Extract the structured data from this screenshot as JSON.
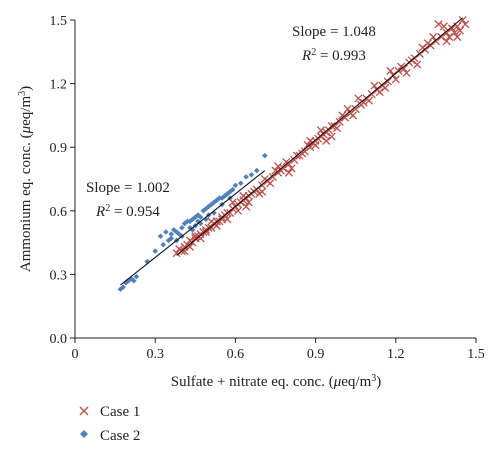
{
  "chart_data": {
    "type": "scatter",
    "xlabel_pre": "Sulfate + nitrate eq. conc. (",
    "xlabel_unit": "μ",
    "xlabel_post": "eq/m",
    "xlabel_sup": "3",
    "xlabel_close": ")",
    "ylabel_pre": "Ammonium eq. conc. (",
    "ylabel_unit": "μ",
    "ylabel_post": "eq/m",
    "ylabel_sup": "3",
    "ylabel_close": ")",
    "xlim": [
      0.0,
      1.5
    ],
    "ylim": [
      0.0,
      1.5
    ],
    "xticks": [
      "0",
      "0.3",
      "0.6",
      "0.9",
      "1.2",
      "1.5"
    ],
    "yticks": [
      "0.0",
      "0.3",
      "0.6",
      "0.9",
      "1.2",
      "1.5"
    ],
    "grid": false,
    "legend_position": "bottom-left",
    "annotations": {
      "case1_slope": "Slope = 1.048",
      "case1_r2_label": "R",
      "case1_r2_sup": "2",
      "case1_r2_value": " = 0.993",
      "case2_slope": "Slope = 1.002",
      "case2_r2_label": "R",
      "case2_r2_sup": "2",
      "case2_r2_value": " = 0.954"
    },
    "series": [
      {
        "name": "Case 1",
        "marker": "x",
        "color": "#c0504d",
        "fit": {
          "x": [
            0.38,
            1.45
          ],
          "y": [
            0.39,
            1.51
          ]
        },
        "points": [
          [
            0.38,
            0.4
          ],
          [
            0.39,
            0.42
          ],
          [
            0.4,
            0.41
          ],
          [
            0.41,
            0.43
          ],
          [
            0.42,
            0.44
          ],
          [
            0.43,
            0.46
          ],
          [
            0.44,
            0.45
          ],
          [
            0.45,
            0.47
          ],
          [
            0.46,
            0.48
          ],
          [
            0.47,
            0.49
          ],
          [
            0.48,
            0.5
          ],
          [
            0.49,
            0.51
          ],
          [
            0.5,
            0.52
          ],
          [
            0.51,
            0.52
          ],
          [
            0.52,
            0.54
          ],
          [
            0.53,
            0.55
          ],
          [
            0.54,
            0.55
          ],
          [
            0.55,
            0.57
          ],
          [
            0.56,
            0.58
          ],
          [
            0.57,
            0.59
          ],
          [
            0.58,
            0.59
          ],
          [
            0.59,
            0.61
          ],
          [
            0.6,
            0.62
          ],
          [
            0.61,
            0.63
          ],
          [
            0.62,
            0.64
          ],
          [
            0.63,
            0.65
          ],
          [
            0.64,
            0.66
          ],
          [
            0.65,
            0.67
          ],
          [
            0.66,
            0.68
          ],
          [
            0.67,
            0.69
          ],
          [
            0.68,
            0.7
          ],
          [
            0.7,
            0.72
          ],
          [
            0.72,
            0.74
          ],
          [
            0.74,
            0.76
          ],
          [
            0.76,
            0.78
          ],
          [
            0.78,
            0.8
          ],
          [
            0.8,
            0.82
          ],
          [
            0.82,
            0.84
          ],
          [
            0.84,
            0.86
          ],
          [
            0.86,
            0.88
          ],
          [
            0.88,
            0.9
          ],
          [
            0.9,
            0.93
          ],
          [
            0.91,
            0.94
          ],
          [
            0.92,
            0.95
          ],
          [
            0.93,
            0.96
          ],
          [
            0.94,
            0.97
          ],
          [
            0.95,
            0.98
          ],
          [
            0.97,
            1.0
          ],
          [
            0.99,
            1.02
          ],
          [
            1.01,
            1.04
          ],
          [
            1.03,
            1.06
          ],
          [
            1.05,
            1.08
          ],
          [
            1.07,
            1.1
          ],
          [
            1.09,
            1.13
          ],
          [
            1.11,
            1.15
          ],
          [
            1.13,
            1.17
          ],
          [
            1.15,
            1.19
          ],
          [
            1.17,
            1.21
          ],
          [
            1.19,
            1.24
          ],
          [
            1.21,
            1.26
          ],
          [
            1.23,
            1.27
          ],
          [
            1.25,
            1.3
          ],
          [
            1.27,
            1.32
          ],
          [
            1.29,
            1.34
          ],
          [
            1.31,
            1.36
          ],
          [
            1.33,
            1.38
          ],
          [
            1.35,
            1.4
          ],
          [
            1.37,
            1.42
          ],
          [
            1.39,
            1.44
          ],
          [
            1.41,
            1.46
          ],
          [
            1.43,
            1.47
          ],
          [
            1.44,
            1.45
          ],
          [
            1.45,
            1.5
          ],
          [
            1.46,
            1.48
          ],
          [
            1.42,
            1.44
          ],
          [
            1.38,
            1.47
          ],
          [
            1.34,
            1.42
          ],
          [
            1.3,
            1.37
          ],
          [
            1.26,
            1.31
          ],
          [
            1.22,
            1.28
          ],
          [
            1.18,
            1.26
          ],
          [
            1.14,
            1.16
          ],
          [
            1.1,
            1.12
          ],
          [
            1.06,
            1.13
          ],
          [
            1.02,
            1.08
          ],
          [
            0.98,
            0.99
          ],
          [
            0.96,
            0.95
          ],
          [
            0.92,
            0.98
          ],
          [
            0.89,
            0.92
          ],
          [
            0.87,
            0.91
          ],
          [
            0.85,
            0.87
          ],
          [
            0.83,
            0.86
          ],
          [
            0.81,
            0.8
          ],
          [
            0.79,
            0.83
          ],
          [
            0.77,
            0.79
          ],
          [
            0.75,
            0.79
          ],
          [
            0.73,
            0.73
          ],
          [
            0.71,
            0.75
          ],
          [
            0.69,
            0.68
          ],
          [
            0.65,
            0.64
          ],
          [
            0.63,
            0.67
          ],
          [
            0.61,
            0.6
          ],
          [
            0.59,
            0.64
          ],
          [
            0.57,
            0.56
          ],
          [
            0.55,
            0.56
          ],
          [
            0.53,
            0.53
          ],
          [
            0.51,
            0.55
          ],
          [
            0.49,
            0.5
          ],
          [
            0.47,
            0.47
          ],
          [
            0.45,
            0.48
          ],
          [
            0.43,
            0.43
          ],
          [
            0.41,
            0.41
          ],
          [
            1.36,
            1.48
          ],
          [
            1.4,
            1.42
          ],
          [
            1.28,
            1.29
          ],
          [
            1.32,
            1.39
          ],
          [
            1.16,
            1.18
          ],
          [
            1.12,
            1.19
          ],
          [
            1.04,
            1.05
          ],
          [
            1.0,
            1.05
          ],
          [
            0.94,
            0.93
          ],
          [
            0.88,
            0.93
          ],
          [
            0.8,
            0.78
          ],
          [
            0.76,
            0.81
          ],
          [
            0.7,
            0.69
          ],
          [
            0.64,
            0.62
          ],
          [
            1.43,
            1.42
          ],
          [
            1.39,
            1.4
          ],
          [
            1.24,
            1.25
          ],
          [
            1.2,
            1.22
          ],
          [
            1.08,
            1.11
          ],
          [
            0.96,
            1.0
          ],
          [
            0.9,
            0.91
          ]
        ]
      },
      {
        "name": "Case 2",
        "marker": "diamond",
        "color": "#4f81bd",
        "fit": {
          "x": [
            0.17,
            0.71
          ],
          "y": [
            0.25,
            0.79
          ]
        },
        "points": [
          [
            0.17,
            0.23
          ],
          [
            0.18,
            0.24
          ],
          [
            0.19,
            0.26
          ],
          [
            0.2,
            0.27
          ],
          [
            0.21,
            0.28
          ],
          [
            0.22,
            0.27
          ],
          [
            0.23,
            0.29
          ],
          [
            0.27,
            0.36
          ],
          [
            0.3,
            0.41
          ],
          [
            0.32,
            0.48
          ],
          [
            0.34,
            0.5
          ],
          [
            0.35,
            0.46
          ],
          [
            0.36,
            0.49
          ],
          [
            0.37,
            0.51
          ],
          [
            0.38,
            0.5
          ],
          [
            0.39,
            0.49
          ],
          [
            0.4,
            0.52
          ],
          [
            0.41,
            0.54
          ],
          [
            0.42,
            0.55
          ],
          [
            0.43,
            0.55
          ],
          [
            0.44,
            0.56
          ],
          [
            0.45,
            0.57
          ],
          [
            0.46,
            0.58
          ],
          [
            0.47,
            0.57
          ],
          [
            0.48,
            0.6
          ],
          [
            0.49,
            0.61
          ],
          [
            0.5,
            0.62
          ],
          [
            0.51,
            0.63
          ],
          [
            0.52,
            0.64
          ],
          [
            0.53,
            0.65
          ],
          [
            0.54,
            0.66
          ],
          [
            0.55,
            0.66
          ],
          [
            0.56,
            0.67
          ],
          [
            0.57,
            0.68
          ],
          [
            0.58,
            0.69
          ],
          [
            0.59,
            0.7
          ],
          [
            0.6,
            0.72
          ],
          [
            0.62,
            0.73
          ],
          [
            0.64,
            0.76
          ],
          [
            0.66,
            0.77
          ],
          [
            0.68,
            0.79
          ],
          [
            0.71,
            0.86
          ],
          [
            0.36,
            0.47
          ],
          [
            0.38,
            0.46
          ],
          [
            0.4,
            0.48
          ],
          [
            0.43,
            0.52
          ],
          [
            0.45,
            0.53
          ],
          [
            0.47,
            0.54
          ],
          [
            0.49,
            0.56
          ],
          [
            0.33,
            0.44
          ],
          [
            0.44,
            0.51
          ],
          [
            0.46,
            0.55
          ],
          [
            0.5,
            0.58
          ],
          [
            0.52,
            0.59
          ],
          [
            0.55,
            0.63
          ],
          [
            0.58,
            0.66
          ]
        ]
      }
    ]
  }
}
